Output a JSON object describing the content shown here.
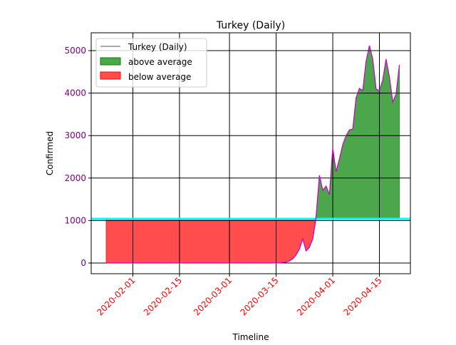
{
  "chart_data": {
    "type": "area",
    "title": "Turkey (Daily)",
    "xlabel": "Timeline",
    "ylabel": "Confirmed",
    "start_date": "2020-01-24",
    "xlim_days_from_start": [
      -4.5,
      91.3
    ],
    "ylim": [
      -252,
      5420
    ],
    "yticks": [
      0,
      1000,
      2000,
      3000,
      4000,
      5000
    ],
    "xticks": [
      {
        "label": "2020-02-01",
        "day": 8
      },
      {
        "label": "2020-02-15",
        "day": 22
      },
      {
        "label": "2020-03-01",
        "day": 37
      },
      {
        "label": "2020-03-15",
        "day": 51
      },
      {
        "label": "2020-04-01",
        "day": 68
      },
      {
        "label": "2020-04-15",
        "day": 82
      }
    ],
    "average": 1040,
    "grid": true,
    "legend_placement": "top-left",
    "legend": [
      "Turkey (Daily)",
      "above average",
      "below average"
    ],
    "series": [
      {
        "name": "Turkey (Daily)",
        "values": [
          0,
          0,
          0,
          0,
          0,
          0,
          0,
          0,
          0,
          0,
          0,
          0,
          0,
          0,
          0,
          0,
          0,
          0,
          0,
          0,
          0,
          0,
          0,
          0,
          0,
          0,
          0,
          0,
          0,
          0,
          0,
          0,
          0,
          0,
          0,
          0,
          0,
          0,
          0,
          0,
          0,
          0,
          0,
          0,
          0,
          0,
          0,
          0,
          0,
          1,
          0,
          4,
          1,
          12,
          20,
          50,
          100,
          190,
          330,
          570,
          285,
          370,
          570,
          1100,
          2065,
          1710,
          1810,
          1610,
          2700,
          2150,
          2450,
          2785,
          3000,
          3135,
          3150,
          3890,
          4110,
          4060,
          4750,
          5120,
          4800,
          4095,
          4060,
          4310,
          4800,
          4380,
          3790,
          3975,
          4665
        ]
      }
    ],
    "colors": {
      "line": "#cc00cc",
      "above": "#008000",
      "below": "#ff0000",
      "average": "#00ffff",
      "ytick": "#800080",
      "xtick": "#ff0000"
    }
  }
}
